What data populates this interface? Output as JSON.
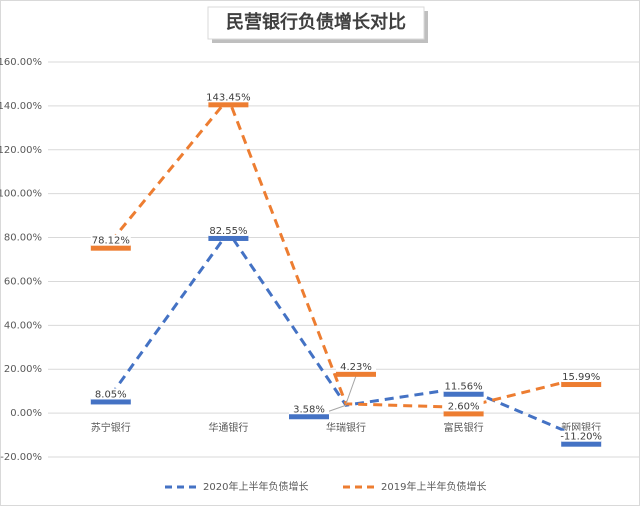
{
  "chart_data": {
    "type": "line",
    "title": "民营银行负债增长对比",
    "categories": [
      "苏宁银行",
      "华通银行",
      "华瑞银行",
      "富民银行",
      "新网银行"
    ],
    "series": [
      {
        "name": "2020年上半年负债增长",
        "color": "#4472c4",
        "values": [
          8.05,
          82.55,
          3.58,
          11.56,
          -11.2
        ],
        "value_labels": [
          "8.05%",
          "82.55%",
          "3.58%",
          "11.56%",
          "-11.20%"
        ]
      },
      {
        "name": "2019年上半年负债增长",
        "color": "#ed7d31",
        "values": [
          78.12,
          143.45,
          4.23,
          2.6,
          15.99
        ],
        "value_labels": [
          "78.12%",
          "143.45%",
          "4.23%",
          "2.60%",
          "15.99%"
        ]
      }
    ],
    "ylim": [
      -20,
      160
    ],
    "yticks": [
      {
        "value": -20,
        "label": "-20.00%"
      },
      {
        "value": 0,
        "label": "0.00%"
      },
      {
        "value": 20,
        "label": "20.00%"
      },
      {
        "value": 40,
        "label": "40.00%"
      },
      {
        "value": 60,
        "label": "60.00%"
      },
      {
        "value": 80,
        "label": "80.00%"
      },
      {
        "value": 100,
        "label": "100.00%"
      },
      {
        "value": 120,
        "label": "120.00%"
      },
      {
        "value": 140,
        "label": "140.00%"
      },
      {
        "value": 160,
        "label": "160.00%"
      }
    ],
    "grid": true,
    "legend": "bottom"
  }
}
